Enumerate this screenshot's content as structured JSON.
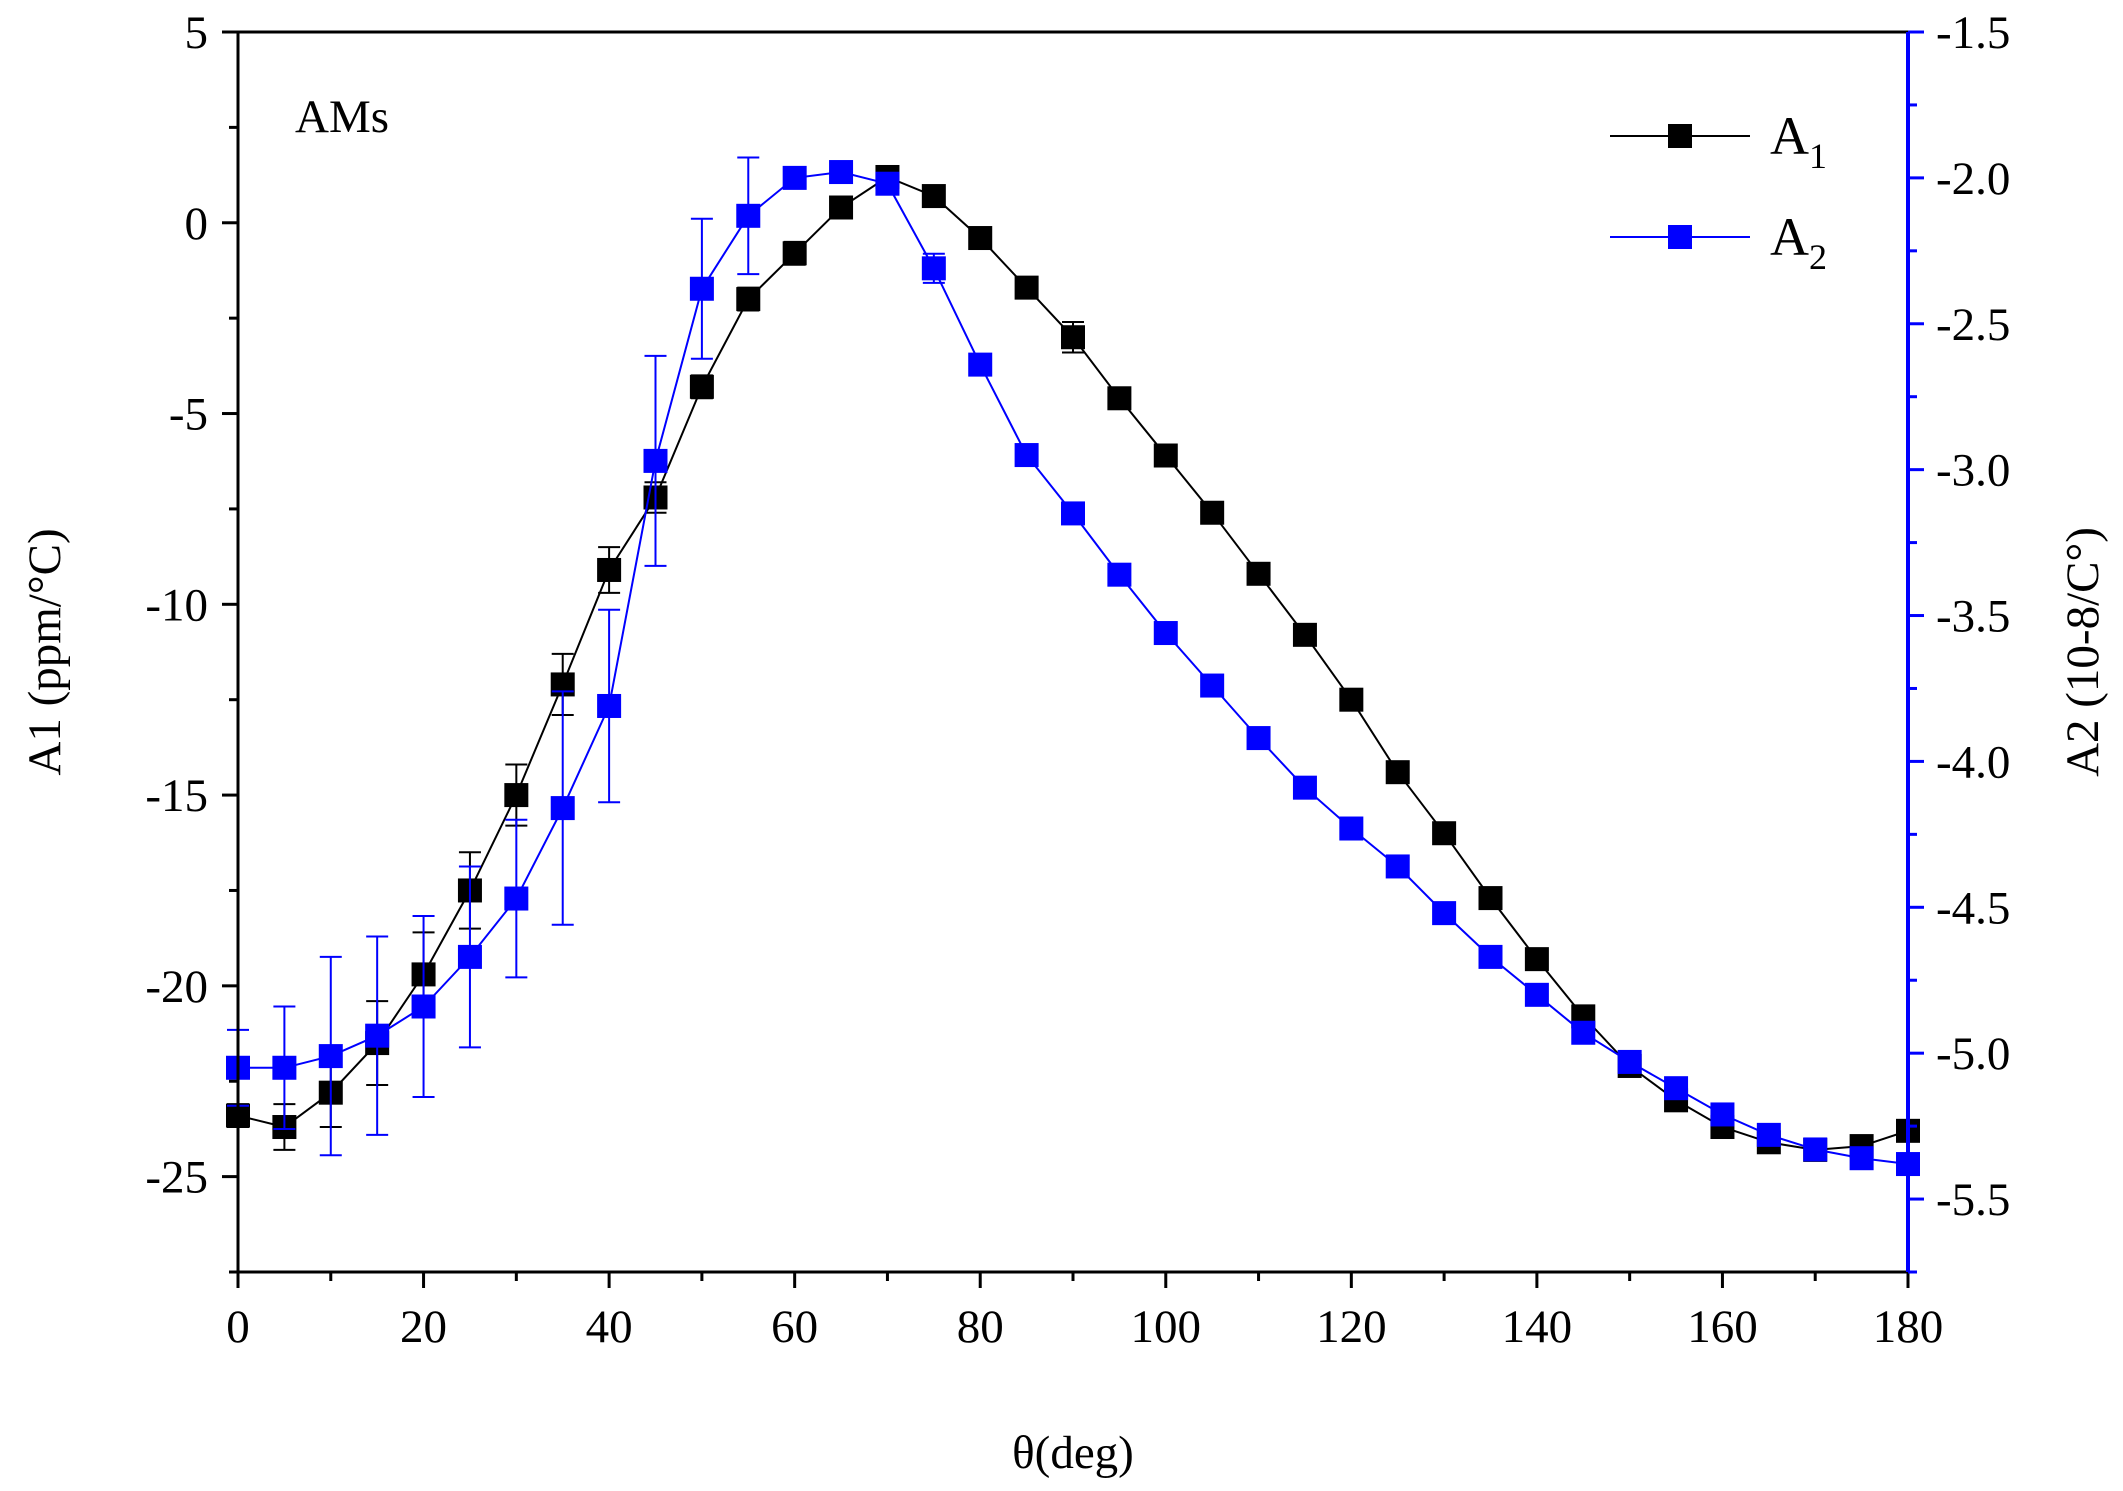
{
  "chart_data": {
    "type": "line",
    "annotation": "AMs",
    "xlabel": "θ(deg)",
    "ylabel_left": "A1 (ppm/°C)",
    "ylabel_right": "A2 (10-8/C°)",
    "xlim": [
      0,
      180
    ],
    "ylim_left": [
      -27.5,
      5
    ],
    "ylim_right": [
      -5.75,
      -1.5
    ],
    "x_ticks": [
      0,
      20,
      40,
      60,
      80,
      100,
      120,
      140,
      160,
      180
    ],
    "x_tick_labels": [
      "0",
      "20",
      "40",
      "60",
      "80",
      "100",
      "120",
      "140",
      "160",
      "180"
    ],
    "y_left_ticks": [
      5,
      0,
      -5,
      -10,
      -15,
      -20,
      -25
    ],
    "y_left_tick_labels": [
      "5",
      "0",
      "-5",
      "-10",
      "-15",
      "-20",
      "-25"
    ],
    "y_right_ticks": [
      -1.5,
      -2.0,
      -2.5,
      -3.0,
      -3.5,
      -4.0,
      -4.5,
      -5.0,
      -5.5
    ],
    "y_right_tick_labels": [
      "-1.5",
      "-2.0",
      "-2.5",
      "-3.0",
      "-3.5",
      "-4.0",
      "-4.5",
      "-5.0",
      "-5.5"
    ],
    "legend_position": "top-right",
    "x": [
      0,
      5,
      10,
      15,
      20,
      25,
      30,
      35,
      40,
      45,
      50,
      55,
      60,
      65,
      70,
      75,
      80,
      85,
      90,
      95,
      100,
      105,
      110,
      115,
      120,
      125,
      130,
      135,
      140,
      145,
      150,
      155,
      160,
      165,
      170,
      175,
      180
    ],
    "series": [
      {
        "name": "A",
        "subscript": "1",
        "axis": "left",
        "color": "#000000",
        "values": [
          -23.4,
          -23.7,
          -22.8,
          -21.5,
          -19.7,
          -17.5,
          -15.0,
          -12.1,
          -9.1,
          -7.2,
          -4.3,
          -2.0,
          -0.8,
          0.4,
          1.2,
          0.7,
          -0.4,
          -1.7,
          -3.0,
          -4.6,
          -6.1,
          -7.6,
          -9.2,
          -10.8,
          -12.5,
          -14.4,
          -16.0,
          -17.7,
          -19.3,
          -20.8,
          -22.1,
          -23.0,
          -23.7,
          -24.1,
          -24.3,
          -24.2,
          -23.8
        ],
        "errors": [
          0.3,
          0.6,
          0.9,
          1.1,
          1.1,
          1.0,
          0.8,
          0.8,
          0.6,
          0.4,
          0.3,
          0.3,
          0.3,
          0.2,
          0.2,
          0.2,
          0.2,
          0.2,
          0.4,
          0.2,
          0.2,
          0.2,
          0.2,
          0.2,
          0.2,
          0.2,
          0.2,
          0.2,
          0.2,
          0.2,
          0.2,
          0.2,
          0.2,
          0.2,
          0.2,
          0.2,
          0.2
        ]
      },
      {
        "name": "A",
        "subscript": "2",
        "axis": "right",
        "color": "#0000ff",
        "values": [
          -5.05,
          -5.05,
          -5.01,
          -4.94,
          -4.84,
          -4.67,
          -4.47,
          -4.16,
          -3.81,
          -2.97,
          -2.38,
          -2.13,
          -2.0,
          -1.98,
          -2.02,
          -2.31,
          -2.64,
          -2.95,
          -3.15,
          -3.36,
          -3.56,
          -3.74,
          -3.92,
          -4.09,
          -4.23,
          -4.36,
          -4.52,
          -4.67,
          -4.8,
          -4.93,
          -5.03,
          -5.12,
          -5.21,
          -5.28,
          -5.33,
          -5.36,
          -5.38
        ],
        "errors": [
          0.13,
          0.21,
          0.34,
          0.34,
          0.31,
          0.31,
          0.27,
          0.4,
          0.33,
          0.36,
          0.24,
          0.2,
          0.03,
          0.03,
          0.03,
          0.05,
          0.02,
          0.02,
          0.02,
          0.02,
          0.02,
          0.02,
          0.02,
          0.02,
          0.02,
          0.02,
          0.02,
          0.02,
          0.02,
          0.02,
          0.02,
          0.02,
          0.02,
          0.02,
          0.02,
          0.02,
          0.02
        ]
      }
    ]
  }
}
